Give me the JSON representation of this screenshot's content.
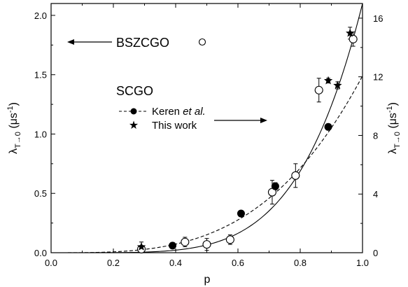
{
  "chart_data": {
    "type": "scatter",
    "xlabel": "p",
    "ylabel_left": {
      "symbol": "λ",
      "subscript": "T→0",
      "unit_prefix": " (μs",
      "unit_exp": "-1",
      "unit_suffix": ")"
    },
    "ylabel_right": {
      "symbol": "λ",
      "subscript": "T→0",
      "unit_prefix": " (μs",
      "unit_exp": "-1",
      "unit_suffix": ")"
    },
    "xlim": [
      0.0,
      1.0
    ],
    "ylim_left": [
      0.0,
      2.1
    ],
    "ylim_right": [
      0,
      17
    ],
    "xticks": [
      0.0,
      0.2,
      0.4,
      0.6,
      0.8,
      1.0
    ],
    "xtick_labels": [
      "0.0",
      "0.2",
      "0.4",
      "0.6",
      "0.8",
      "1.0"
    ],
    "yticks_left": [
      0.0,
      0.5,
      1.0,
      1.5,
      2.0
    ],
    "ytick_labels_left": [
      "0.0",
      "0.5",
      "1.0",
      "1.5",
      "2.0"
    ],
    "yticks_right": [
      0,
      4,
      8,
      12,
      16
    ],
    "ytick_labels_right": [
      "0",
      "4",
      "8",
      "12",
      "16"
    ],
    "grid": false,
    "series": [
      {
        "name": "BSZCGO",
        "axis": "left",
        "marker": "open-circle",
        "points": [
          {
            "x": 0.29,
            "y": 0.03,
            "err": 0.02
          },
          {
            "x": 0.43,
            "y": 0.09,
            "err": 0.04
          },
          {
            "x": 0.5,
            "y": 0.07,
            "err": 0.05
          },
          {
            "x": 0.575,
            "y": 0.11,
            "err": 0.04
          },
          {
            "x": 0.71,
            "y": 0.51,
            "err": 0.1
          },
          {
            "x": 0.785,
            "y": 0.65,
            "err": 0.1
          },
          {
            "x": 0.86,
            "y": 1.37,
            "err": 0.1
          },
          {
            "x": 0.97,
            "y": 1.8,
            "err": 0.06
          }
        ]
      },
      {
        "name": "Keren et al.",
        "axis": "left",
        "marker": "filled-circle",
        "points": [
          {
            "x": 0.39,
            "y": 0.06,
            "err": 0
          },
          {
            "x": 0.61,
            "y": 0.33,
            "err": 0
          },
          {
            "x": 0.72,
            "y": 0.56,
            "err": 0.03
          },
          {
            "x": 0.89,
            "y": 1.06,
            "err": 0
          }
        ]
      },
      {
        "name": "This work",
        "axis": "left",
        "marker": "star",
        "points": [
          {
            "x": 0.29,
            "y": 0.05,
            "err": 0.04
          },
          {
            "x": 0.89,
            "y": 1.45,
            "err": 0.02
          },
          {
            "x": 0.92,
            "y": 1.41,
            "err": 0.03
          },
          {
            "x": 0.96,
            "y": 1.85,
            "err": 0.05
          }
        ]
      }
    ],
    "fits": [
      {
        "style": "solid",
        "form": "power",
        "coefficient": 2.1,
        "exponent": 5.0
      },
      {
        "style": "dashed",
        "form": "power",
        "coefficient": 1.49,
        "exponent": 3.3
      }
    ],
    "annotations": {
      "bszcgo_label": "BSZCGO",
      "scgo_label": "SCGO",
      "legend_keren_prefix": "Keren ",
      "legend_keren_italic": "et al.",
      "legend_this_work": "This work"
    }
  }
}
